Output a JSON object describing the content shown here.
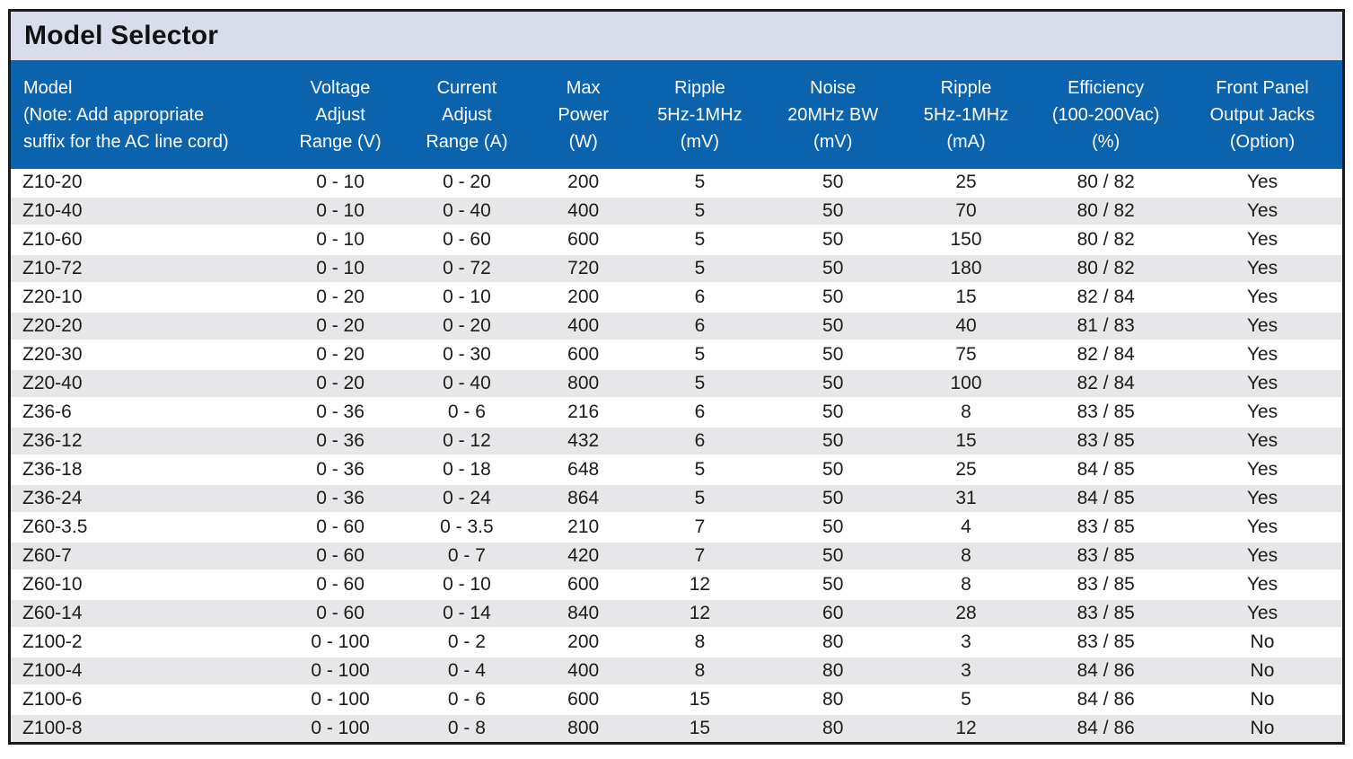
{
  "title": "Model Selector",
  "colors": {
    "header_blue": "#0b63ad",
    "title_bar_bg": "#d9ddeb",
    "row_alt_bg": "#e7e7e9",
    "border": "#1a1a1a",
    "header_text": "#ffffff",
    "body_text": "#1c1c1c"
  },
  "table": {
    "columns": [
      {
        "lines": [
          "Model",
          "(Note: Add appropriate",
          "suffix for the AC line cord)"
        ],
        "align": "left"
      },
      {
        "lines": [
          "Voltage",
          "Adjust",
          "Range (V)"
        ]
      },
      {
        "lines": [
          "Current",
          "Adjust",
          "Range (A)"
        ]
      },
      {
        "lines": [
          "Max",
          "Power",
          "(W)"
        ]
      },
      {
        "lines": [
          "Ripple",
          "5Hz-1MHz",
          "(mV)"
        ]
      },
      {
        "lines": [
          "Noise",
          "20MHz BW",
          "(mV)"
        ]
      },
      {
        "lines": [
          "Ripple",
          "5Hz-1MHz",
          "(mA)"
        ]
      },
      {
        "lines": [
          "Efficiency",
          "(100-200Vac)",
          "(%)"
        ]
      },
      {
        "lines": [
          "Front Panel",
          "Output Jacks",
          "(Option)"
        ]
      }
    ],
    "rows": [
      [
        "Z10-20",
        "0 - 10",
        "0 - 20",
        "200",
        "5",
        "50",
        "25",
        "80 / 82",
        "Yes"
      ],
      [
        "Z10-40",
        "0 - 10",
        "0 - 40",
        "400",
        "5",
        "50",
        "70",
        "80 / 82",
        "Yes"
      ],
      [
        "Z10-60",
        "0 - 10",
        "0 - 60",
        "600",
        "5",
        "50",
        "150",
        "80 / 82",
        "Yes"
      ],
      [
        "Z10-72",
        "0 - 10",
        "0 - 72",
        "720",
        "5",
        "50",
        "180",
        "80 / 82",
        "Yes"
      ],
      [
        "Z20-10",
        "0 - 20",
        "0 - 10",
        "200",
        "6",
        "50",
        "15",
        "82 / 84",
        "Yes"
      ],
      [
        "Z20-20",
        "0 - 20",
        "0 - 20",
        "400",
        "6",
        "50",
        "40",
        "81 / 83",
        "Yes"
      ],
      [
        "Z20-30",
        "0 - 20",
        "0 - 30",
        "600",
        "5",
        "50",
        "75",
        "82 / 84",
        "Yes"
      ],
      [
        "Z20-40",
        "0 - 20",
        "0 - 40",
        "800",
        "5",
        "50",
        "100",
        "82 / 84",
        "Yes"
      ],
      [
        "Z36-6",
        "0 - 36",
        "0 - 6",
        "216",
        "6",
        "50",
        "8",
        "83 / 85",
        "Yes"
      ],
      [
        "Z36-12",
        "0 - 36",
        "0 - 12",
        "432",
        "6",
        "50",
        "15",
        "83 / 85",
        "Yes"
      ],
      [
        "Z36-18",
        "0 - 36",
        "0 - 18",
        "648",
        "5",
        "50",
        "25",
        "84 / 85",
        "Yes"
      ],
      [
        "Z36-24",
        "0 - 36",
        "0 - 24",
        "864",
        "5",
        "50",
        "31",
        "84 / 85",
        "Yes"
      ],
      [
        "Z60-3.5",
        "0 - 60",
        "0 - 3.5",
        "210",
        "7",
        "50",
        "4",
        "83 / 85",
        "Yes"
      ],
      [
        "Z60-7",
        "0 - 60",
        "0 - 7",
        "420",
        "7",
        "50",
        "8",
        "83 / 85",
        "Yes"
      ],
      [
        "Z60-10",
        "0 - 60",
        "0 - 10",
        "600",
        "12",
        "50",
        "8",
        "83 / 85",
        "Yes"
      ],
      [
        "Z60-14",
        "0 - 60",
        "0 - 14",
        "840",
        "12",
        "60",
        "28",
        "83 / 85",
        "Yes"
      ],
      [
        "Z100-2",
        "0 - 100",
        "0 - 2",
        "200",
        "8",
        "80",
        "3",
        "83 / 85",
        "No"
      ],
      [
        "Z100-4",
        "0 - 100",
        "0 - 4",
        "400",
        "8",
        "80",
        "3",
        "84 / 86",
        "No"
      ],
      [
        "Z100-6",
        "0 - 100",
        "0 - 6",
        "600",
        "15",
        "80",
        "5",
        "84 / 86",
        "No"
      ],
      [
        "Z100-8",
        "0 - 100",
        "0 - 8",
        "800",
        "15",
        "80",
        "12",
        "84 / 86",
        "No"
      ]
    ]
  }
}
